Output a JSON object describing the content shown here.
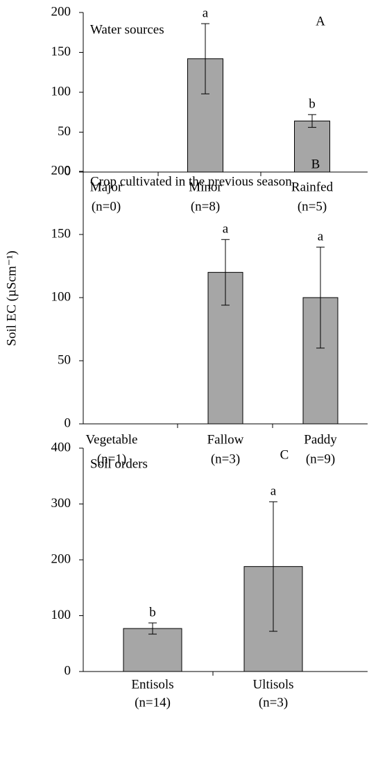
{
  "chart_data": [
    {
      "type": "bar",
      "title": "Water sources",
      "panel": "A",
      "categories": [
        "Major",
        "Minor",
        "Rainfed"
      ],
      "category_notes": [
        "(n=0)",
        "(n=8)",
        "(n=5)"
      ],
      "values": [
        null,
        142,
        64
      ],
      "errors": [
        null,
        44,
        8
      ],
      "letters": [
        null,
        "a",
        "b"
      ],
      "color": "#a6a6a6",
      "ylim": [
        0,
        200
      ],
      "yticks": [
        0,
        50,
        100,
        150,
        200
      ]
    },
    {
      "type": "bar",
      "title": "Crop cultivated in the previous season",
      "panel": "B",
      "ylabel": "Soil EC (µScm⁻¹)",
      "categories": [
        "Vegetable",
        "Fallow",
        "Paddy"
      ],
      "category_notes": [
        "(n=1)",
        "(n=3)",
        "(n=9)"
      ],
      "values": [
        null,
        120,
        100
      ],
      "errors": [
        null,
        26,
        40
      ],
      "letters": [
        null,
        "a",
        "a"
      ],
      "color": "#a6a6a6",
      "ylim": [
        0,
        200
      ],
      "yticks": [
        0,
        50,
        100,
        150,
        200
      ]
    },
    {
      "type": "bar",
      "title": "Soil orders",
      "panel": "C",
      "categories": [
        "Entisols",
        "Ultisols"
      ],
      "category_notes": [
        "(n=14)",
        "(n=3)"
      ],
      "values": [
        77,
        188
      ],
      "errors": [
        10,
        116
      ],
      "letters": [
        "b",
        "a"
      ],
      "color": "#a6a6a6",
      "ylim": [
        0,
        400
      ],
      "yticks": [
        0,
        100,
        200,
        300,
        400
      ]
    }
  ]
}
